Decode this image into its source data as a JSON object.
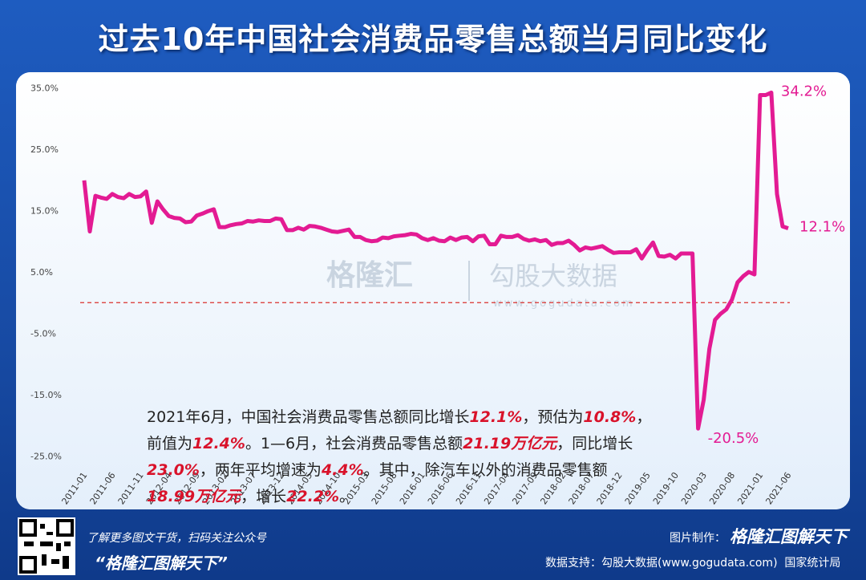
{
  "header": {
    "title": "过去10年中国社会消费品零售总额当月同比变化"
  },
  "chart_data": {
    "type": "line",
    "color": "#e31b93",
    "categories": [
      "2011-01",
      null,
      null,
      null,
      null,
      "2011-06",
      null,
      null,
      null,
      null,
      "2011-11",
      null,
      null,
      null,
      null,
      "2012-04",
      null,
      null,
      null,
      null,
      "2012-09",
      null,
      null,
      null,
      null,
      "2013-02",
      null,
      null,
      null,
      null,
      "2013-07",
      null,
      null,
      null,
      null,
      "2013-12",
      null,
      null,
      null,
      null,
      "2014-05",
      null,
      null,
      null,
      null,
      "2014-10",
      null,
      null,
      null,
      null,
      "2015-03",
      null,
      null,
      null,
      null,
      "2015-08",
      null,
      null,
      null,
      null,
      "2016-01",
      null,
      null,
      null,
      null,
      "2016-06",
      null,
      null,
      null,
      null,
      "2016-11",
      null,
      null,
      null,
      null,
      "2017-04",
      null,
      null,
      null,
      null,
      "2017-09",
      null,
      null,
      null,
      null,
      "2018-02",
      null,
      null,
      null,
      null,
      "2018-07",
      null,
      null,
      null,
      null,
      "2018-12",
      null,
      null,
      null,
      null,
      "2019-05",
      null,
      null,
      null,
      null,
      "2019-10",
      null,
      null,
      null,
      null,
      "2020-03",
      null,
      null,
      null,
      null,
      "2020-08",
      null,
      null,
      null,
      null,
      "2021-01",
      null,
      null,
      null,
      null,
      "2021-06"
    ],
    "values": [
      19.9,
      11.6,
      17.4,
      17.1,
      16.9,
      17.7,
      17.2,
      17.0,
      17.7,
      17.2,
      17.3,
      18.1,
      13.0,
      16.5,
      15.2,
      14.1,
      13.8,
      13.7,
      13.1,
      13.2,
      14.2,
      14.5,
      14.9,
      15.2,
      12.3,
      12.3,
      12.6,
      12.8,
      12.9,
      13.3,
      13.2,
      13.4,
      13.3,
      13.3,
      13.7,
      13.6,
      11.8,
      11.8,
      12.2,
      11.9,
      12.5,
      12.4,
      12.2,
      11.9,
      11.6,
      11.5,
      11.7,
      11.9,
      10.7,
      10.7,
      10.2,
      10.0,
      10.1,
      10.6,
      10.5,
      10.8,
      10.9,
      11.0,
      11.2,
      11.1,
      10.5,
      10.2,
      10.5,
      10.1,
      10.0,
      10.6,
      10.2,
      10.6,
      10.7,
      10.0,
      10.8,
      10.9,
      9.5,
      9.5,
      10.9,
      10.7,
      10.7,
      11.0,
      10.4,
      10.1,
      10.3,
      10.0,
      10.2,
      9.4,
      9.7,
      9.7,
      10.1,
      9.4,
      8.5,
      9.0,
      8.8,
      9.0,
      9.2,
      8.6,
      8.1,
      8.2,
      8.2,
      8.2,
      8.7,
      7.2,
      8.6,
      9.8,
      7.6,
      7.5,
      7.8,
      7.2,
      8.0,
      8.0,
      8.0,
      -20.5,
      -15.8,
      -7.5,
      -2.8,
      -1.8,
      -1.1,
      0.5,
      3.3,
      4.3,
      5.0,
      4.6,
      33.8,
      33.8,
      34.2,
      17.7,
      12.4,
      12.1
    ],
    "value_labels": [
      null,
      null,
      null,
      null,
      null,
      null,
      null,
      null,
      null,
      null,
      null,
      null,
      null,
      null,
      null,
      null,
      null,
      null,
      null,
      null,
      null,
      null,
      null,
      null,
      null,
      null,
      null,
      null,
      null,
      null,
      null,
      null,
      null,
      null,
      null,
      null,
      null,
      null,
      null,
      null,
      null,
      null,
      null,
      null,
      null,
      null,
      null,
      null,
      null,
      null,
      null,
      null,
      null,
      null,
      null,
      null,
      null,
      null,
      null,
      null,
      null,
      null,
      null,
      null,
      null,
      null,
      null,
      null,
      null,
      null,
      null,
      null,
      null,
      null,
      null,
      null,
      null,
      null,
      null,
      null,
      null,
      null,
      null,
      null,
      null,
      null,
      null,
      null,
      null,
      null,
      null,
      null,
      null,
      null,
      null,
      null,
      null,
      null,
      null,
      null,
      null,
      null,
      null,
      null,
      null,
      null,
      null,
      null,
      null,
      "-20.5%",
      null,
      null,
      null,
      null,
      null,
      null,
      null,
      null,
      null,
      null,
      null,
      null,
      "34.2%",
      null,
      null,
      "12.1%"
    ],
    "ylim": [
      -27,
      37
    ],
    "yticks": [
      {
        "value": 35,
        "label": "35.0%"
      },
      {
        "value": 25,
        "label": "25.0%"
      },
      {
        "value": 15,
        "label": "15.0%"
      },
      {
        "value": 5,
        "label": "5.0%"
      },
      {
        "value": -5,
        "label": "-5.0%"
      },
      {
        "value": -15,
        "label": "-15.0%"
      },
      {
        "value": -25,
        "label": "-25.0%"
      }
    ],
    "reference_line": {
      "value": 0,
      "color": "#d9302c"
    }
  },
  "note": [
    {
      "text": "2021年6月，中国社会消费品零售总额同比增长",
      "highlight": false
    },
    {
      "text": "12.1%",
      "highlight": true
    },
    {
      "text": "，预估为",
      "highlight": false
    },
    {
      "text": "10.8%",
      "highlight": true
    },
    {
      "text": "，前值为",
      "highlight": false
    },
    {
      "text": "12.4%",
      "highlight": true
    },
    {
      "text": "。1—6月，社会消费品零售总额",
      "highlight": false
    },
    {
      "text": "21.19万亿元",
      "highlight": true
    },
    {
      "text": "，同比增长",
      "highlight": false
    },
    {
      "text": "23.0%",
      "highlight": true
    },
    {
      "text": "，两年平均增速为",
      "highlight": false
    },
    {
      "text": "4.4%",
      "highlight": true
    },
    {
      "text": "。其中，除汽车以外的消费品零售额",
      "highlight": false
    },
    {
      "text": "18.99万亿元",
      "highlight": true
    },
    {
      "text": "，增长",
      "highlight": false
    },
    {
      "text": "22.2%",
      "highlight": true
    },
    {
      "text": "。",
      "highlight": false
    }
  ],
  "watermark": {
    "brand": "格隆汇",
    "partner": "勾股大数据",
    "site": "www.gogudata.com"
  },
  "footer": {
    "scan": "了解更多图文干货，扫码关注公众号",
    "account": "“格隆汇图解天下”",
    "made_by": "图片制作：",
    "made_brand": "格隆汇图解天下",
    "source": "数据支持：勾股大数据(www.gogudata.com)  国家统计局"
  }
}
